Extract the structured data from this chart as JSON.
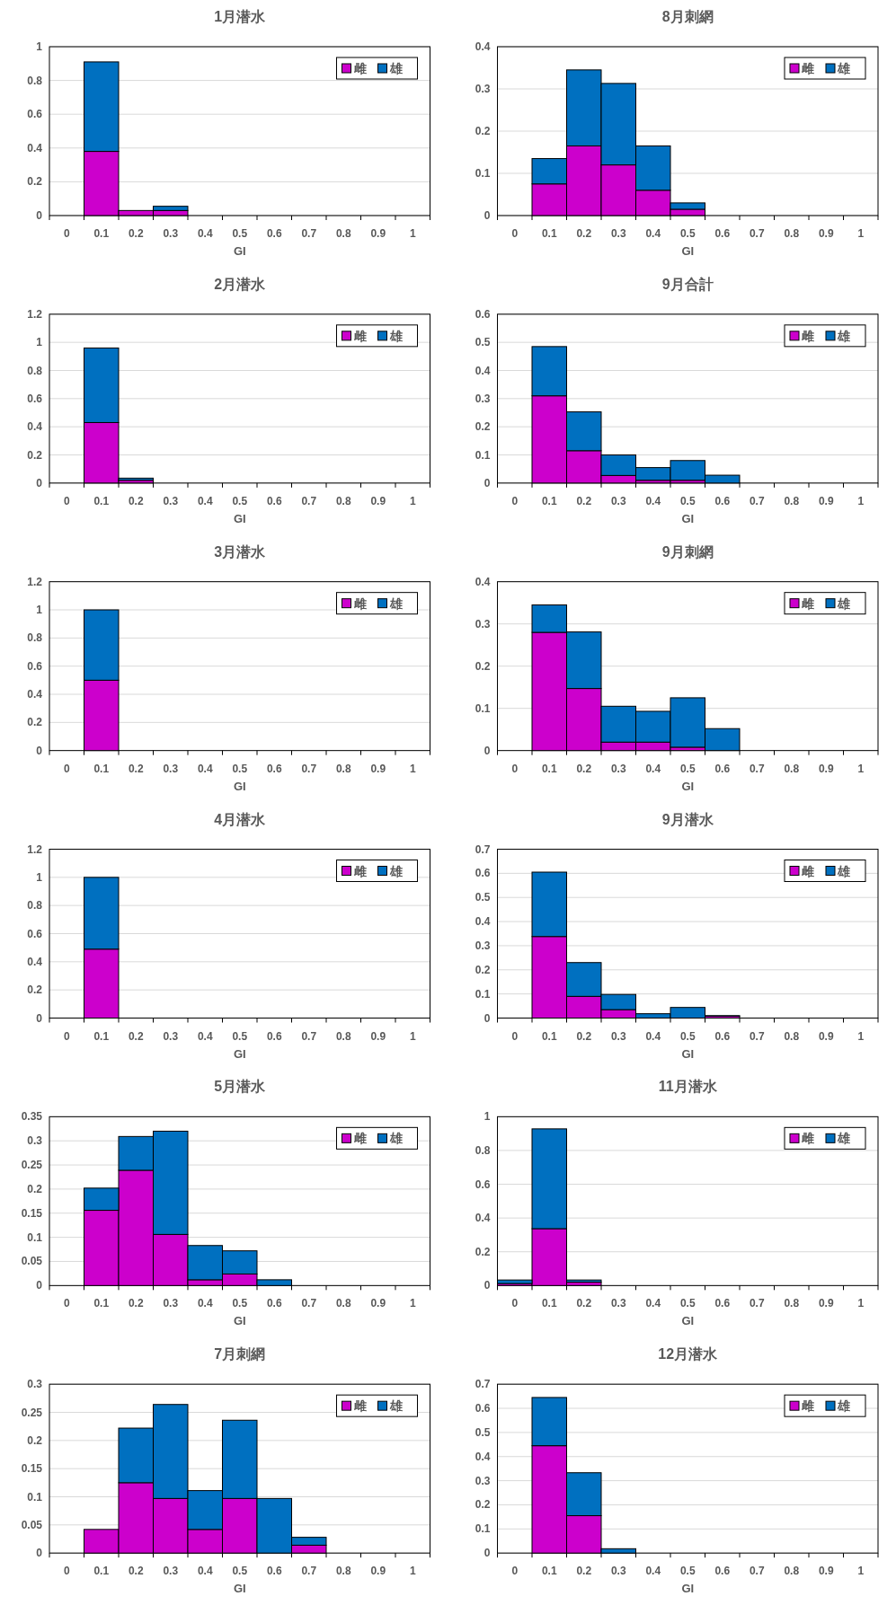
{
  "chart_data": [
    {
      "type": "bar",
      "stacked": true,
      "title": "1月潜水",
      "xlabel": "GI",
      "categories": [
        "0",
        "0.1",
        "0.2",
        "0.3",
        "0.4",
        "0.5",
        "0.6",
        "0.7",
        "0.8",
        "0.9",
        "1"
      ],
      "series": [
        {
          "name": "雌",
          "color": "#cc00cc",
          "values": [
            0,
            0.38,
            0.03,
            0.03,
            0,
            0,
            0,
            0,
            0,
            0,
            0
          ]
        },
        {
          "name": "雄",
          "color": "#0070c0",
          "values": [
            0,
            0.53,
            0,
            0.025,
            0,
            0,
            0,
            0,
            0,
            0,
            0
          ]
        }
      ],
      "ylim": [
        0,
        1
      ],
      "yticks": [
        0,
        0.2,
        0.4,
        0.6,
        0.8,
        1
      ],
      "grid": "y",
      "legend": "top right"
    },
    {
      "type": "bar",
      "stacked": true,
      "title": "8月刺網",
      "xlabel": "GI",
      "categories": [
        "0",
        "0.1",
        "0.2",
        "0.3",
        "0.4",
        "0.5",
        "0.6",
        "0.7",
        "0.8",
        "0.9",
        "1"
      ],
      "series": [
        {
          "name": "雌",
          "color": "#cc00cc",
          "values": [
            0,
            0.075,
            0.165,
            0.12,
            0.06,
            0.015,
            0,
            0,
            0,
            0,
            0
          ]
        },
        {
          "name": "雄",
          "color": "#0070c0",
          "values": [
            0,
            0.06,
            0.18,
            0.193,
            0.105,
            0.015,
            0,
            0,
            0,
            0,
            0
          ]
        }
      ],
      "ylim": [
        0,
        0.4
      ],
      "yticks": [
        0,
        0.1,
        0.2,
        0.3,
        0.4
      ],
      "grid": "y",
      "legend": "top right"
    },
    {
      "type": "bar",
      "stacked": true,
      "title": "2月潜水",
      "xlabel": "GI",
      "categories": [
        "0",
        "0.1",
        "0.2",
        "0.3",
        "0.4",
        "0.5",
        "0.6",
        "0.7",
        "0.8",
        "0.9",
        "1"
      ],
      "series": [
        {
          "name": "雌",
          "color": "#cc00cc",
          "values": [
            0,
            0.43,
            0.02,
            0,
            0,
            0,
            0,
            0,
            0,
            0,
            0
          ]
        },
        {
          "name": "雄",
          "color": "#0070c0",
          "values": [
            0,
            0.53,
            0.015,
            0,
            0,
            0,
            0,
            0,
            0,
            0,
            0
          ]
        }
      ],
      "ylim": [
        0,
        1.2
      ],
      "yticks": [
        0,
        0.2,
        0.4,
        0.6,
        0.8,
        1,
        1.2
      ],
      "grid": "y",
      "legend": "top right"
    },
    {
      "type": "bar",
      "stacked": true,
      "title": "9月合計",
      "xlabel": "GI",
      "categories": [
        "0",
        "0.1",
        "0.2",
        "0.3",
        "0.4",
        "0.5",
        "0.6",
        "0.7",
        "0.8",
        "0.9",
        "1"
      ],
      "series": [
        {
          "name": "雌",
          "color": "#cc00cc",
          "values": [
            0,
            0.31,
            0.115,
            0.027,
            0.01,
            0.01,
            null,
            0,
            0,
            0,
            0
          ]
        },
        {
          "name": "雄",
          "color": "#0070c0",
          "values": [
            0,
            0.175,
            0.138,
            0.073,
            0.045,
            0.07,
            0.028,
            0,
            0,
            0,
            0
          ]
        }
      ],
      "ylim": [
        0,
        0.6
      ],
      "yticks": [
        0,
        0.1,
        0.2,
        0.3,
        0.4,
        0.5,
        0.6
      ],
      "grid": "y",
      "legend": "top right"
    },
    {
      "type": "bar",
      "stacked": true,
      "title": "3月潜水",
      "xlabel": "GI",
      "categories": [
        "0",
        "0.1",
        "0.2",
        "0.3",
        "0.4",
        "0.5",
        "0.6",
        "0.7",
        "0.8",
        "0.9",
        "1"
      ],
      "series": [
        {
          "name": "雌",
          "color": "#cc00cc",
          "values": [
            0,
            0.5,
            0,
            0,
            0,
            0,
            0,
            0,
            0,
            0,
            0
          ]
        },
        {
          "name": "雄",
          "color": "#0070c0",
          "values": [
            0,
            0.5,
            0,
            0,
            0,
            0,
            0,
            0,
            0,
            0,
            0
          ]
        }
      ],
      "ylim": [
        0,
        1.2
      ],
      "yticks": [
        0,
        0.2,
        0.4,
        0.6,
        0.8,
        1,
        1.2
      ],
      "grid": "y",
      "legend": "top right"
    },
    {
      "type": "bar",
      "stacked": true,
      "title": "9月刺網",
      "xlabel": "GI",
      "categories": [
        "0",
        "0.1",
        "0.2",
        "0.3",
        "0.4",
        "0.5",
        "0.6",
        "0.7",
        "0.8",
        "0.9",
        "1"
      ],
      "series": [
        {
          "name": "雌",
          "color": "#cc00cc",
          "values": [
            0,
            0.28,
            0.147,
            0.02,
            0.02,
            0.008,
            0,
            0,
            0,
            0,
            0
          ]
        },
        {
          "name": "雄",
          "color": "#0070c0",
          "values": [
            0,
            0.065,
            0.134,
            0.085,
            0.073,
            0.117,
            0.052,
            0,
            0,
            0,
            0
          ]
        }
      ],
      "ylim": [
        0,
        0.4
      ],
      "yticks": [
        0,
        0.1,
        0.2,
        0.3,
        0.4
      ],
      "grid": "y",
      "legend": "top right"
    },
    {
      "type": "bar",
      "stacked": true,
      "title": "4月潜水",
      "xlabel": "GI",
      "categories": [
        "0",
        "0.1",
        "0.2",
        "0.3",
        "0.4",
        "0.5",
        "0.6",
        "0.7",
        "0.8",
        "0.9",
        "1"
      ],
      "series": [
        {
          "name": "雌",
          "color": "#cc00cc",
          "values": [
            0,
            0.49,
            0,
            0,
            0,
            0,
            0,
            0,
            0,
            0,
            0
          ]
        },
        {
          "name": "雄",
          "color": "#0070c0",
          "values": [
            0,
            0.51,
            0,
            0,
            0,
            0,
            0,
            0,
            0,
            0,
            0
          ]
        }
      ],
      "ylim": [
        0,
        1.2
      ],
      "yticks": [
        0,
        0.2,
        0.4,
        0.6,
        0.8,
        1,
        1.2
      ],
      "grid": "y",
      "legend": "top right"
    },
    {
      "type": "bar",
      "stacked": true,
      "title": "9月潜水",
      "xlabel": "GI",
      "categories": [
        "0",
        "0.1",
        "0.2",
        "0.3",
        "0.4",
        "0.5",
        "0.6",
        "0.7",
        "0.8",
        "0.9",
        "1"
      ],
      "series": [
        {
          "name": "雌",
          "color": "#cc00cc",
          "values": [
            0,
            0.338,
            0.09,
            0.035,
            null,
            null,
            0.008,
            0,
            0,
            0,
            0
          ]
        },
        {
          "name": "雄",
          "color": "#0070c0",
          "values": [
            0,
            0.267,
            0.14,
            0.063,
            0.018,
            0.044,
            0.002,
            0,
            0,
            0,
            0
          ]
        }
      ],
      "ylim": [
        0,
        0.7
      ],
      "yticks": [
        0,
        0.1,
        0.2,
        0.3,
        0.4,
        0.5,
        0.6,
        0.7
      ],
      "grid": "y",
      "legend": "top right"
    },
    {
      "type": "bar",
      "stacked": true,
      "title": "5月潜水",
      "xlabel": "GI",
      "categories": [
        "0",
        "0.1",
        "0.2",
        "0.3",
        "0.4",
        "0.5",
        "0.6",
        "0.7",
        "0.8",
        "0.9",
        "1"
      ],
      "series": [
        {
          "name": "雌",
          "color": "#cc00cc",
          "values": [
            0,
            0.156,
            0.239,
            0.106,
            0.012,
            0.024,
            0,
            0,
            0,
            0,
            0
          ]
        },
        {
          "name": "雄",
          "color": "#0070c0",
          "values": [
            0,
            0.046,
            0.07,
            0.214,
            0.071,
            0.048,
            0.012,
            0,
            0,
            0,
            0
          ]
        }
      ],
      "ylim": [
        0,
        0.35
      ],
      "yticks": [
        0,
        0.05,
        0.1,
        0.15,
        0.2,
        0.25,
        0.3,
        0.35
      ],
      "grid": "y",
      "legend": "top right"
    },
    {
      "type": "bar",
      "stacked": true,
      "title": "11月潜水",
      "xlabel": "GI",
      "categories": [
        "0",
        "0.1",
        "0.2",
        "0.3",
        "0.4",
        "0.5",
        "0.6",
        "0.7",
        "0.8",
        "0.9",
        "1"
      ],
      "series": [
        {
          "name": "雌",
          "color": "#cc00cc",
          "values": [
            0.012,
            0.337,
            0.02,
            0,
            0,
            0,
            0,
            0,
            0,
            0,
            0
          ]
        },
        {
          "name": "雄",
          "color": "#0070c0",
          "values": [
            0.021,
            0.591,
            0.013,
            0,
            0,
            0,
            0,
            0,
            0,
            0,
            0
          ]
        }
      ],
      "ylim": [
        0,
        1
      ],
      "yticks": [
        0,
        0.2,
        0.4,
        0.6,
        0.8,
        1
      ],
      "grid": "y",
      "legend": "top right"
    },
    {
      "type": "bar",
      "stacked": true,
      "title": "7月刺網",
      "xlabel": "GI",
      "categories": [
        "0",
        "0.1",
        "0.2",
        "0.3",
        "0.4",
        "0.5",
        "0.6",
        "0.7",
        "0.8",
        "0.9",
        "1"
      ],
      "series": [
        {
          "name": "雌",
          "color": "#cc00cc",
          "values": [
            0,
            0.042,
            0.125,
            0.097,
            0.042,
            0.097,
            0,
            0.014,
            0,
            0,
            0
          ]
        },
        {
          "name": "雄",
          "color": "#0070c0",
          "values": [
            0,
            0,
            0.097,
            0.167,
            0.069,
            0.139,
            0.097,
            0.014,
            0,
            0,
            0
          ]
        }
      ],
      "ylim": [
        0,
        0.3
      ],
      "yticks": [
        0,
        0.05,
        0.1,
        0.15,
        0.2,
        0.25,
        0.3
      ],
      "grid": "y",
      "legend": "top right"
    },
    {
      "type": "bar",
      "stacked": true,
      "title": "12月潜水",
      "xlabel": "GI",
      "categories": [
        "0",
        "0.1",
        "0.2",
        "0.3",
        "0.4",
        "0.5",
        "0.6",
        "0.7",
        "0.8",
        "0.9",
        "1"
      ],
      "series": [
        {
          "name": "雌",
          "color": "#cc00cc",
          "values": [
            0,
            0.445,
            0.155,
            0,
            0,
            0,
            0,
            0,
            0,
            0,
            0
          ]
        },
        {
          "name": "雄",
          "color": "#0070c0",
          "values": [
            0,
            0.2,
            0.178,
            0.018,
            0,
            0,
            0,
            0,
            0,
            0,
            0
          ]
        }
      ],
      "ylim": [
        0,
        0.7
      ],
      "yticks": [
        0,
        0.1,
        0.2,
        0.3,
        0.4,
        0.5,
        0.6,
        0.7
      ],
      "grid": "y",
      "legend": "top right"
    }
  ]
}
